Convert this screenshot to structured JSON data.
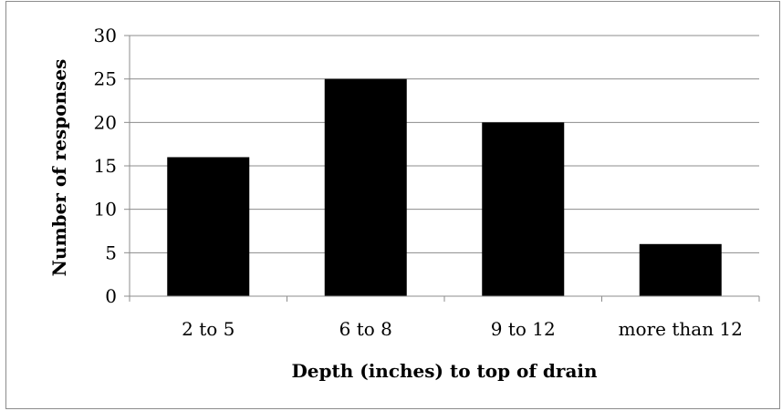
{
  "chart_data": {
    "type": "bar",
    "title": "",
    "xlabel": "Depth (inches) to top of drain",
    "ylabel": "Number of responses",
    "categories": [
      "2 to 5",
      "6 to 8",
      "9 to 12",
      "more than 12"
    ],
    "values": [
      16,
      25,
      20,
      6
    ],
    "ylim": [
      0,
      30
    ],
    "yticks": [
      0,
      5,
      10,
      15,
      20,
      25,
      30
    ],
    "grid": true,
    "legend": "none",
    "bar_color": "#000000",
    "grid_color": "#8c8c8c"
  }
}
